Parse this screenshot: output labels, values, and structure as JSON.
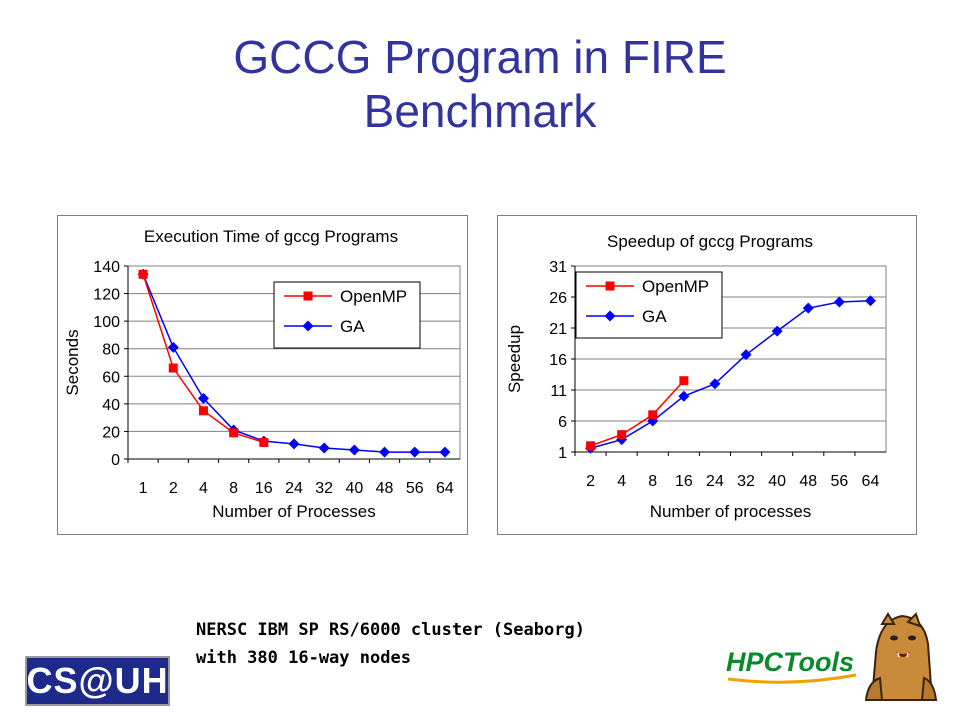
{
  "slide": {
    "title_line1": "GCCG Program in FIRE",
    "title_line2": "Benchmark",
    "caption_line1": "NERSC IBM SP RS/6000 cluster (Seaborg)",
    "caption_line2": "with 380 16-way nodes",
    "logo_left": "CS@UH",
    "logo_right": "HPCTools"
  },
  "colors": {
    "title": "#3333a0",
    "openmp": "#ff0000",
    "ga": "#0000ff"
  },
  "chart_data": [
    {
      "type": "line",
      "title": "Execution Time of gccg Programs",
      "xlabel": "Number of Processes",
      "ylabel": "Seconds",
      "categories": [
        "1",
        "2",
        "4",
        "8",
        "16",
        "24",
        "32",
        "40",
        "48",
        "56",
        "64"
      ],
      "ylim": [
        0,
        140
      ],
      "yticks": [
        0,
        20,
        40,
        60,
        80,
        100,
        120,
        140
      ],
      "grid": "horizontal",
      "legend": "top-right",
      "series": [
        {
          "name": "OpenMP",
          "marker": "square",
          "values": [
            134,
            66,
            35,
            19,
            12,
            null,
            null,
            null,
            null,
            null,
            null
          ]
        },
        {
          "name": "GA",
          "marker": "diamond",
          "values": [
            134,
            81,
            44,
            21,
            13,
            11,
            8,
            6.5,
            5,
            5,
            5
          ]
        }
      ]
    },
    {
      "type": "line",
      "title": "Speedup of gccg Programs",
      "xlabel": "Number of processes",
      "ylabel": "Speedup",
      "categories": [
        "2",
        "4",
        "8",
        "16",
        "24",
        "32",
        "40",
        "48",
        "56",
        "64"
      ],
      "ylim": [
        1,
        31
      ],
      "yticks": [
        1,
        6,
        11,
        16,
        21,
        26,
        31
      ],
      "grid": "horizontal",
      "legend": "top-left",
      "series": [
        {
          "name": "OpenMP",
          "marker": "square",
          "values": [
            2,
            3.8,
            7,
            12.5,
            null,
            null,
            null,
            null,
            null,
            null
          ]
        },
        {
          "name": "GA",
          "marker": "diamond",
          "values": [
            1.6,
            3,
            6,
            10,
            12,
            16.7,
            20.5,
            24.2,
            25.2,
            25.4
          ]
        }
      ]
    }
  ]
}
